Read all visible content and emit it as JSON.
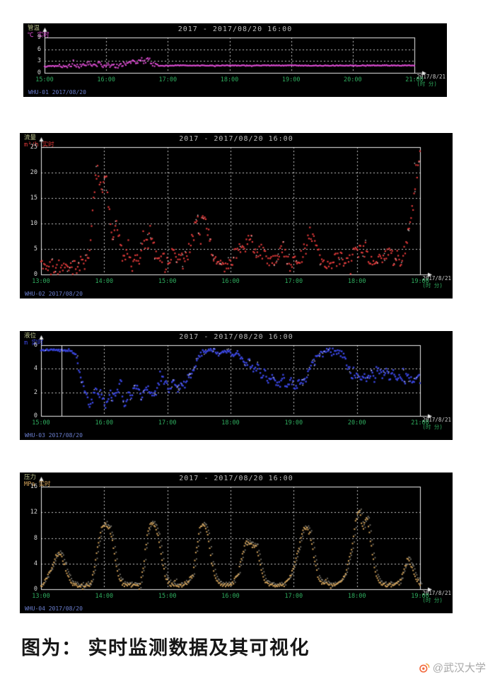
{
  "page": {
    "caption": "图为： 实时监测数据及其可视化",
    "watermark_text": "@武汉大学",
    "watermark_accent": "#f2683c",
    "background": "#ffffff"
  },
  "chart_data": [
    {
      "id": "ch1",
      "type": "line",
      "title": "2017 - 2017/08/20 16:00",
      "corner_label": [
        "管温",
        "℃ 实时"
      ],
      "x_labels": [
        "15:00",
        "16:00",
        "17:00",
        "18:00",
        "19:00",
        "20:00",
        "21:00"
      ],
      "y_ticks": [
        0,
        3,
        6,
        9
      ],
      "ylim": [
        0,
        9
      ],
      "x_axis_note": [
        "2017/8/21",
        "(时 分)"
      ],
      "footnote": "WHU-01  2017/08/20",
      "color": "#e24fd8",
      "point_size": 2.0,
      "seed": 5,
      "speckle": false,
      "shadow": false,
      "cursor_x": null,
      "noise_zones": [
        [
          0,
          4,
          0.12
        ],
        [
          4,
          31,
          0.5
        ],
        [
          31,
          100,
          0.09
        ]
      ],
      "keypoints": [
        [
          0,
          1.6
        ],
        [
          4,
          1.8
        ],
        [
          6,
          1.5
        ],
        [
          8,
          2.1
        ],
        [
          10,
          1.6
        ],
        [
          12,
          2.6
        ],
        [
          13,
          1.8
        ],
        [
          15,
          2.3
        ],
        [
          16,
          1.7
        ],
        [
          18,
          2.0
        ],
        [
          20,
          1.7
        ],
        [
          22,
          2.2
        ],
        [
          24,
          3.2
        ],
        [
          25,
          2.4
        ],
        [
          26,
          3.6
        ],
        [
          27,
          2.6
        ],
        [
          28,
          3.9
        ],
        [
          29,
          2.3
        ],
        [
          30,
          1.9
        ],
        [
          32,
          1.8
        ],
        [
          36,
          1.9
        ],
        [
          45,
          1.85
        ],
        [
          60,
          1.9
        ],
        [
          75,
          1.85
        ],
        [
          90,
          1.9
        ],
        [
          100,
          1.85
        ]
      ]
    },
    {
      "id": "ch2",
      "type": "line",
      "title": "2017 - 2017/08/20 16:00",
      "corner_label": [
        "流量",
        "m³/h 实时"
      ],
      "x_labels": [
        "13:00",
        "14:00",
        "15:00",
        "16:00",
        "17:00",
        "18:00",
        "19:00"
      ],
      "y_ticks": [
        0,
        5,
        10,
        15,
        20,
        25
      ],
      "ylim": [
        0,
        25
      ],
      "x_axis_note": [
        "2017/8/21",
        "(时 分)"
      ],
      "footnote": "WHU-02  2017/08/20",
      "color": "#e03a3a",
      "point_size": 2.2,
      "seed": 11,
      "speckle": true,
      "shadow": false,
      "cursor_x": null,
      "noise_zones": [
        [
          0,
          100,
          1.4
        ]
      ],
      "keypoints": [
        [
          0,
          2.5
        ],
        [
          2,
          1.8
        ],
        [
          4,
          1.2
        ],
        [
          6,
          1.8
        ],
        [
          8,
          1.1
        ],
        [
          10,
          1.6
        ],
        [
          12,
          2.5
        ],
        [
          13,
          6
        ],
        [
          14,
          17
        ],
        [
          15,
          21
        ],
        [
          16,
          16
        ],
        [
          17,
          20
        ],
        [
          18,
          13
        ],
        [
          19,
          7
        ],
        [
          20,
          11
        ],
        [
          21,
          5
        ],
        [
          22,
          2.5
        ],
        [
          23,
          5.5
        ],
        [
          24,
          2
        ],
        [
          25,
          2.5
        ],
        [
          26,
          3
        ],
        [
          27,
          7.5
        ],
        [
          28,
          5.5
        ],
        [
          29,
          8.5
        ],
        [
          30,
          4.5
        ],
        [
          31,
          2.5
        ],
        [
          32,
          3.5
        ],
        [
          33,
          2
        ],
        [
          34,
          2.8
        ],
        [
          35,
          5.5
        ],
        [
          36,
          3.5
        ],
        [
          38,
          2.5
        ],
        [
          40,
          7
        ],
        [
          41,
          11
        ],
        [
          42,
          8.5
        ],
        [
          43,
          12.5
        ],
        [
          44,
          9
        ],
        [
          45,
          4.5
        ],
        [
          46,
          2.5
        ],
        [
          48,
          1.8
        ],
        [
          50,
          2.5
        ],
        [
          52,
          4.5
        ],
        [
          54,
          5.5
        ],
        [
          55,
          7.5
        ],
        [
          56,
          5.5
        ],
        [
          57,
          3.5
        ],
        [
          58,
          4.5
        ],
        [
          60,
          2.8
        ],
        [
          62,
          3.5
        ],
        [
          64,
          5.5
        ],
        [
          65,
          2.8
        ],
        [
          66,
          1.8
        ],
        [
          68,
          2.5
        ],
        [
          70,
          5.5
        ],
        [
          71,
          8.5
        ],
        [
          72,
          6.5
        ],
        [
          73,
          4.5
        ],
        [
          74,
          2.8
        ],
        [
          75,
          1.8
        ],
        [
          77,
          2.5
        ],
        [
          79,
          3.5
        ],
        [
          80,
          2.8
        ],
        [
          82,
          3.5
        ],
        [
          84,
          4.5
        ],
        [
          85,
          5.5
        ],
        [
          86,
          3.5
        ],
        [
          88,
          2.5
        ],
        [
          90,
          3.5
        ],
        [
          92,
          4.5
        ],
        [
          93,
          2.8
        ],
        [
          94,
          3.5
        ],
        [
          95,
          2.8
        ],
        [
          96,
          4.5
        ],
        [
          97,
          7
        ],
        [
          98,
          13
        ],
        [
          99,
          19
        ],
        [
          100,
          24
        ]
      ]
    },
    {
      "id": "ch3",
      "type": "line",
      "title": "2017 - 2017/08/20 16:00",
      "corner_label": [
        "液位",
        "m 实时"
      ],
      "x_labels": [
        "15:00",
        "16:00",
        "17:00",
        "18:00",
        "19:00",
        "20:00",
        "21:00"
      ],
      "y_ticks": [
        0,
        2,
        4,
        6
      ],
      "ylim": [
        0,
        6
      ],
      "x_axis_note": [
        "2017/8/21",
        "(时 分)"
      ],
      "footnote": "WHU-03  2017/08/20",
      "color": "#3a46e0",
      "point_size": 2.4,
      "seed": 23,
      "speckle": true,
      "shadow": false,
      "cursor_x": 5.5,
      "noise_zones": [
        [
          0,
          9,
          0.06
        ],
        [
          9,
          40,
          0.4
        ],
        [
          40,
          55,
          0.18
        ],
        [
          55,
          100,
          0.35
        ]
      ],
      "keypoints": [
        [
          0,
          5.6
        ],
        [
          5,
          5.6
        ],
        [
          8,
          5.5
        ],
        [
          9,
          5.2
        ],
        [
          10,
          4.2
        ],
        [
          11,
          2.8
        ],
        [
          12,
          2.0
        ],
        [
          13,
          0.7
        ],
        [
          14,
          1.9
        ],
        [
          15,
          2.2
        ],
        [
          16,
          1.7
        ],
        [
          17,
          0.8
        ],
        [
          18,
          1.9
        ],
        [
          19,
          1.6
        ],
        [
          20,
          1.8
        ],
        [
          21,
          3.1
        ],
        [
          22,
          0.8
        ],
        [
          23,
          1.8
        ],
        [
          24,
          1.6
        ],
        [
          25,
          2.8
        ],
        [
          26,
          1.8
        ],
        [
          27,
          1.6
        ],
        [
          28,
          2.4
        ],
        [
          29,
          1.8
        ],
        [
          30,
          1.9
        ],
        [
          31,
          2.6
        ],
        [
          32,
          3.5
        ],
        [
          33,
          2.6
        ],
        [
          34,
          1.9
        ],
        [
          35,
          3.3
        ],
        [
          36,
          2.4
        ],
        [
          38,
          2.8
        ],
        [
          40,
          3.8
        ],
        [
          42,
          5.2
        ],
        [
          44,
          5.6
        ],
        [
          46,
          5.5
        ],
        [
          47,
          5.2
        ],
        [
          48,
          5.5
        ],
        [
          50,
          5.4
        ],
        [
          51,
          5.0
        ],
        [
          52,
          5.4
        ],
        [
          53,
          4.8
        ],
        [
          54,
          4.3
        ],
        [
          55,
          4.7
        ],
        [
          56,
          3.8
        ],
        [
          57,
          4.2
        ],
        [
          58,
          3.5
        ],
        [
          59,
          3.7
        ],
        [
          60,
          3.1
        ],
        [
          61,
          3.5
        ],
        [
          62,
          2.9
        ],
        [
          63,
          2.6
        ],
        [
          64,
          3.0
        ],
        [
          65,
          2.5
        ],
        [
          66,
          2.9
        ],
        [
          67,
          2.4
        ],
        [
          68,
          2.8
        ],
        [
          70,
          3.1
        ],
        [
          71,
          4.0
        ],
        [
          72,
          4.6
        ],
        [
          73,
          5.0
        ],
        [
          74,
          5.4
        ],
        [
          75,
          5.5
        ],
        [
          76,
          5.4
        ],
        [
          77,
          5.5
        ],
        [
          78,
          5.3
        ],
        [
          79,
          5.4
        ],
        [
          80,
          5.0
        ],
        [
          81,
          4.1
        ],
        [
          82,
          3.4
        ],
        [
          83,
          3.8
        ],
        [
          84,
          3.2
        ],
        [
          85,
          3.6
        ],
        [
          86,
          3.1
        ],
        [
          87,
          3.7
        ],
        [
          88,
          3.2
        ],
        [
          89,
          3.8
        ],
        [
          90,
          3.4
        ],
        [
          91,
          4.0
        ],
        [
          92,
          3.1
        ],
        [
          93,
          3.6
        ],
        [
          94,
          3.0
        ],
        [
          95,
          3.5
        ],
        [
          96,
          2.9
        ],
        [
          97,
          3.4
        ],
        [
          98,
          3.0
        ],
        [
          99,
          3.3
        ],
        [
          100,
          3.1
        ]
      ]
    },
    {
      "id": "ch4",
      "type": "line",
      "title": "2017 - 2017/08/20 16:00",
      "corner_label": [
        "压力",
        "MPa 实时"
      ],
      "x_labels": [
        "13:00",
        "14:00",
        "15:00",
        "16:00",
        "17:00",
        "18:00",
        "19:00"
      ],
      "y_ticks": [
        0,
        4,
        8,
        12,
        16
      ],
      "ylim": [
        0,
        16
      ],
      "x_axis_note": [
        "2017/8/21",
        "(时 分)"
      ],
      "footnote": "WHU-04  2017/08/20",
      "color": "#d9a75c",
      "point_size": 2.0,
      "seed": 37,
      "speckle": false,
      "shadow": true,
      "cursor_x": null,
      "noise_zones": [
        [
          0,
          100,
          0.28
        ]
      ],
      "keypoints": [
        [
          0,
          0.5
        ],
        [
          2,
          2.2
        ],
        [
          4,
          5.2
        ],
        [
          5,
          5.6
        ],
        [
          6,
          4.2
        ],
        [
          7,
          2.2
        ],
        [
          8,
          0.9
        ],
        [
          10,
          0.5
        ],
        [
          13,
          0.7
        ],
        [
          14,
          3
        ],
        [
          15,
          7
        ],
        [
          16,
          9.8
        ],
        [
          17,
          10.2
        ],
        [
          18,
          9.6
        ],
        [
          19,
          7
        ],
        [
          20,
          3
        ],
        [
          21,
          1.2
        ],
        [
          22,
          0.6
        ],
        [
          26,
          0.6
        ],
        [
          27,
          3.2
        ],
        [
          28,
          8.2
        ],
        [
          29,
          10.4
        ],
        [
          30,
          10.1
        ],
        [
          31,
          8.2
        ],
        [
          32,
          4.2
        ],
        [
          33,
          1.6
        ],
        [
          34,
          0.7
        ],
        [
          38,
          0.6
        ],
        [
          40,
          2.2
        ],
        [
          41,
          6.2
        ],
        [
          42,
          9.9
        ],
        [
          43,
          10.2
        ],
        [
          44,
          8.2
        ],
        [
          45,
          4.2
        ],
        [
          46,
          1.6
        ],
        [
          47,
          0.7
        ],
        [
          50,
          0.6
        ],
        [
          52,
          2.2
        ],
        [
          53,
          5.2
        ],
        [
          54,
          7.4
        ],
        [
          55,
          6.9
        ],
        [
          56,
          7.1
        ],
        [
          57,
          6.1
        ],
        [
          58,
          3.2
        ],
        [
          59,
          1.2
        ],
        [
          60,
          0.6
        ],
        [
          64,
          0.6
        ],
        [
          66,
          2.2
        ],
        [
          68,
          6.2
        ],
        [
          69,
          9.2
        ],
        [
          70,
          9.6
        ],
        [
          71,
          8.6
        ],
        [
          72,
          5.2
        ],
        [
          73,
          2.2
        ],
        [
          74,
          0.9
        ],
        [
          78,
          0.6
        ],
        [
          80,
          1.8
        ],
        [
          82,
          6.5
        ],
        [
          83,
          10.5
        ],
        [
          84,
          12.6
        ],
        [
          85,
          9.5
        ],
        [
          86,
          11.5
        ],
        [
          87,
          7.2
        ],
        [
          88,
          3.2
        ],
        [
          89,
          1.2
        ],
        [
          90,
          0.7
        ],
        [
          93,
          0.6
        ],
        [
          95,
          1.6
        ],
        [
          96,
          3.6
        ],
        [
          97,
          4.6
        ],
        [
          98,
          3.2
        ],
        [
          99,
          1.6
        ],
        [
          100,
          0.9
        ]
      ]
    }
  ]
}
